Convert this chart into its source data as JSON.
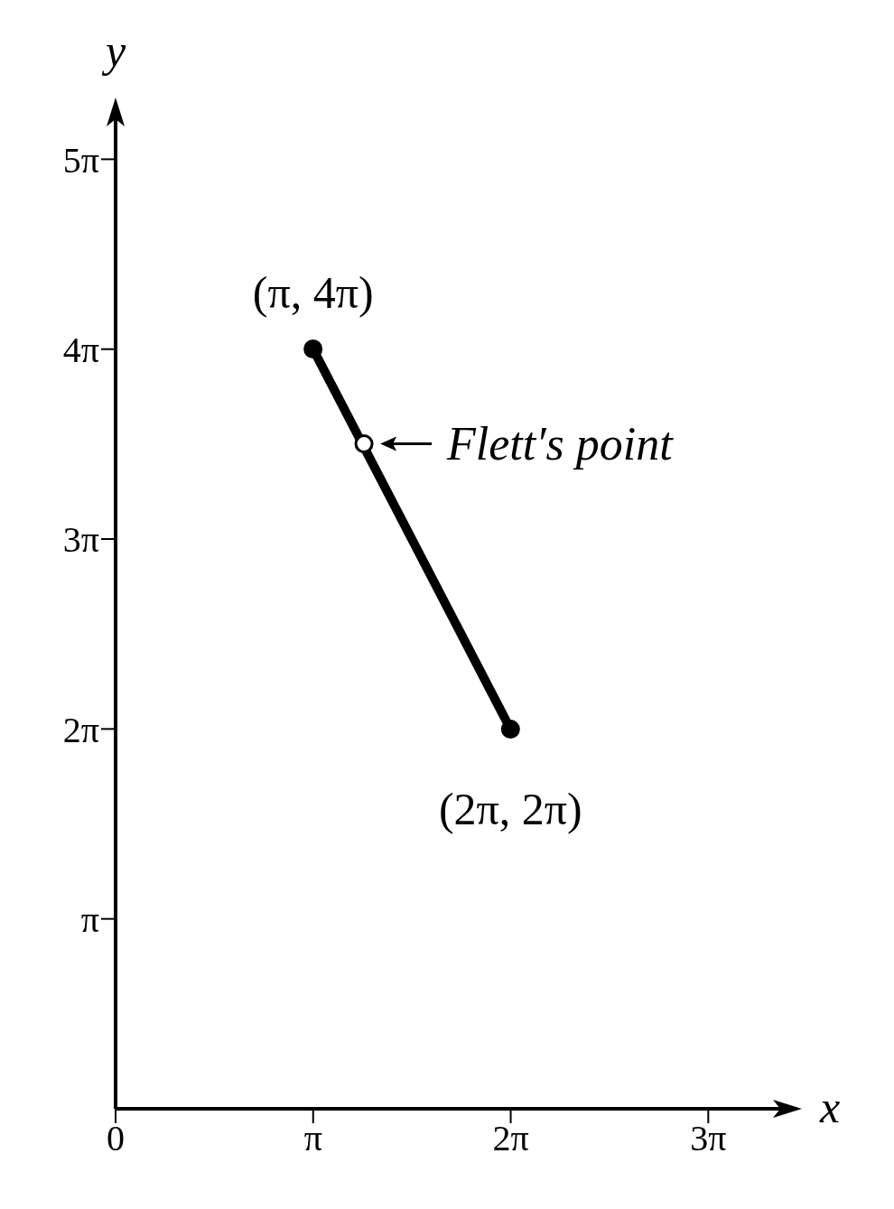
{
  "chart_data": {
    "type": "line",
    "xlabel": "x",
    "ylabel": "y",
    "xlim": [
      0,
      10.77
    ],
    "ylim": [
      0,
      16.58
    ],
    "xticks": [
      0,
      {
        "value": 3.1416,
        "label": "π"
      },
      {
        "value": 6.2832,
        "label": "2π"
      },
      {
        "value": 9.4248,
        "label": "3π"
      }
    ],
    "yticks": [
      {
        "value": 3.1416,
        "label": "π"
      },
      {
        "value": 6.2832,
        "label": "2π"
      },
      {
        "value": 9.4248,
        "label": "3π"
      },
      {
        "value": 12.5664,
        "label": "4π"
      },
      {
        "value": 15.708,
        "label": "5π"
      }
    ],
    "series": [
      {
        "color": "#000000",
        "x": [
          3.14,
          6.28
        ],
        "values": [
          12.57,
          6.28
        ],
        "marker": "circle"
      },
      {
        "type": "scatter",
        "color": "#ffffff",
        "x": [
          3.95
        ],
        "values": [
          11.0
        ],
        "marker": "circle"
      }
    ],
    "annotations": [
      {
        "text": "(π, 4π)",
        "x": 3.14,
        "y": 12.57
      },
      {
        "text": "(2π, 2π)",
        "x": 6.28,
        "y": 6.28
      },
      {
        "text": "Flett′s point",
        "x": 3.95,
        "y": 11.0
      }
    ],
    "grid": false,
    "legend": false
  }
}
